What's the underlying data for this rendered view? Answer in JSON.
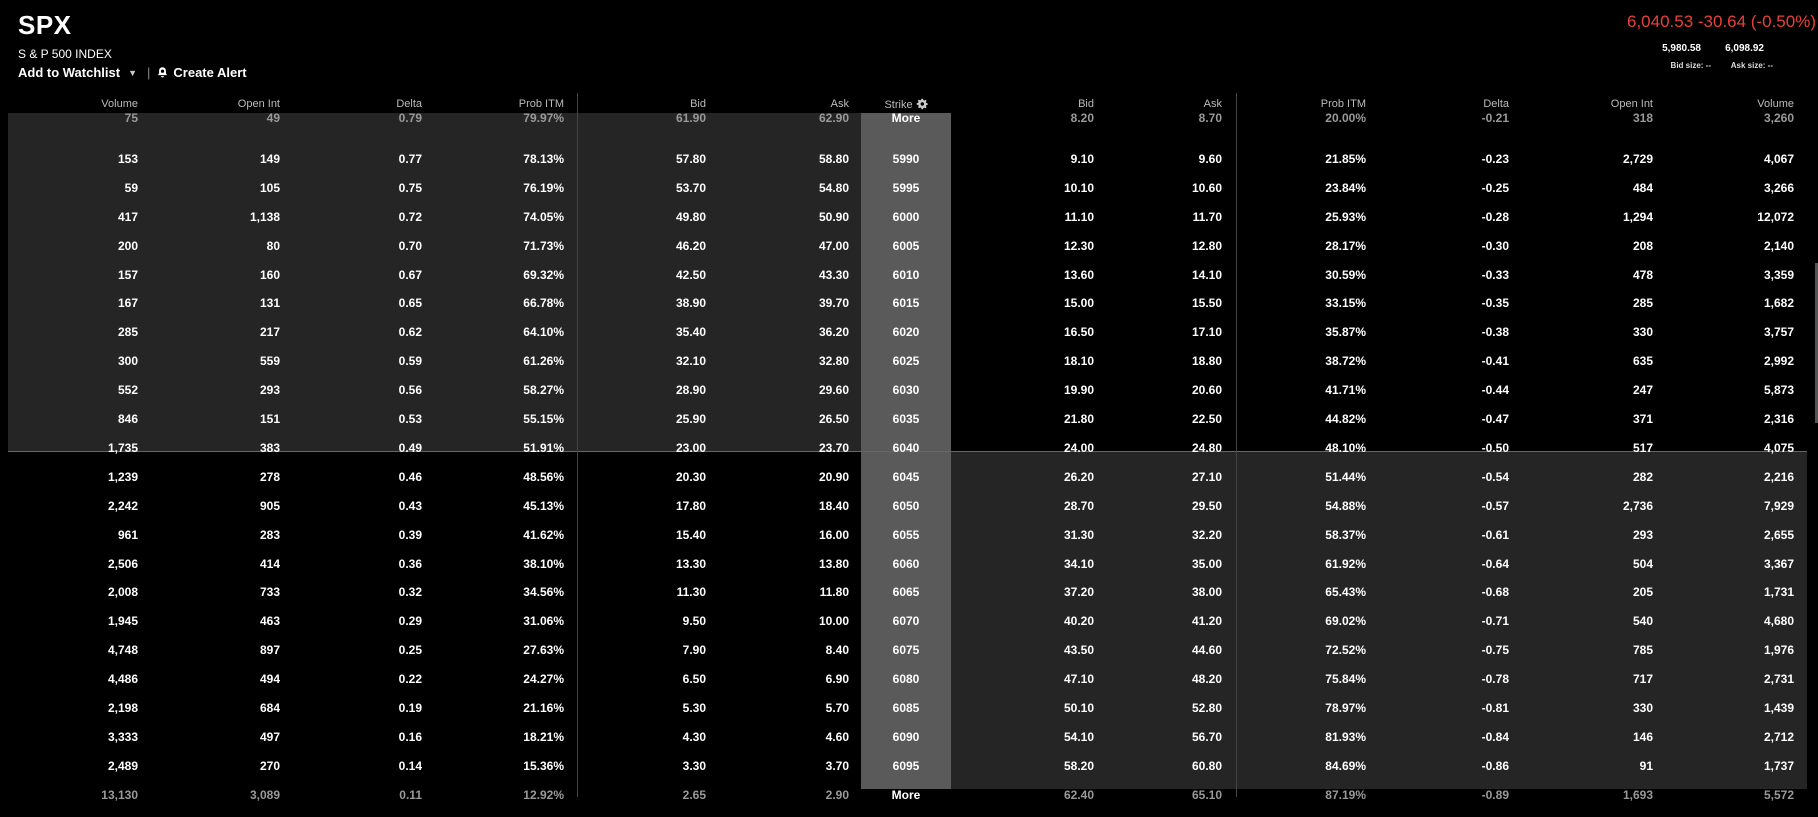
{
  "header": {
    "symbol": "SPX",
    "index_name": "S & P 500 INDEX",
    "add_watchlist": "Add to Watchlist",
    "separator": "|",
    "create_alert": "Create Alert",
    "price_change": "6,040.53 -30.64 (-0.50%)",
    "low": "5,980.58",
    "high": "6,098.92",
    "bid_size": "Bid size: --",
    "ask_size": "Ask size: --",
    "change_color": "#e8413a"
  },
  "columns": {
    "calls": [
      "Volume",
      "Open Int",
      "Delta",
      "Prob ITM",
      "Bid",
      "Ask"
    ],
    "strike": "Strike",
    "puts": [
      "Bid",
      "Ask",
      "Prob ITM",
      "Delta",
      "Open Int",
      "Volume"
    ]
  },
  "rows": [
    {
      "c": [
        "75",
        "49",
        "0.79",
        "79.97%",
        "61.90",
        "62.90"
      ],
      "s": "More",
      "p": [
        "8.20",
        "8.70",
        "20.00%",
        "-0.21",
        "318",
        "3,260"
      ]
    },
    {
      "c": [
        "153",
        "149",
        "0.77",
        "78.13%",
        "57.80",
        "58.80"
      ],
      "s": "5990",
      "p": [
        "9.10",
        "9.60",
        "21.85%",
        "-0.23",
        "2,729",
        "4,067"
      ]
    },
    {
      "c": [
        "59",
        "105",
        "0.75",
        "76.19%",
        "53.70",
        "54.80"
      ],
      "s": "5995",
      "p": [
        "10.10",
        "10.60",
        "23.84%",
        "-0.25",
        "484",
        "3,266"
      ]
    },
    {
      "c": [
        "417",
        "1,138",
        "0.72",
        "74.05%",
        "49.80",
        "50.90"
      ],
      "s": "6000",
      "p": [
        "11.10",
        "11.70",
        "25.93%",
        "-0.28",
        "1,294",
        "12,072"
      ]
    },
    {
      "c": [
        "200",
        "80",
        "0.70",
        "71.73%",
        "46.20",
        "47.00"
      ],
      "s": "6005",
      "p": [
        "12.30",
        "12.80",
        "28.17%",
        "-0.30",
        "208",
        "2,140"
      ]
    },
    {
      "c": [
        "157",
        "160",
        "0.67",
        "69.32%",
        "42.50",
        "43.30"
      ],
      "s": "6010",
      "p": [
        "13.60",
        "14.10",
        "30.59%",
        "-0.33",
        "478",
        "3,359"
      ]
    },
    {
      "c": [
        "167",
        "131",
        "0.65",
        "66.78%",
        "38.90",
        "39.70"
      ],
      "s": "6015",
      "p": [
        "15.00",
        "15.50",
        "33.15%",
        "-0.35",
        "285",
        "1,682"
      ]
    },
    {
      "c": [
        "285",
        "217",
        "0.62",
        "64.10%",
        "35.40",
        "36.20"
      ],
      "s": "6020",
      "p": [
        "16.50",
        "17.10",
        "35.87%",
        "-0.38",
        "330",
        "3,757"
      ]
    },
    {
      "c": [
        "300",
        "559",
        "0.59",
        "61.26%",
        "32.10",
        "32.80"
      ],
      "s": "6025",
      "p": [
        "18.10",
        "18.80",
        "38.72%",
        "-0.41",
        "635",
        "2,992"
      ]
    },
    {
      "c": [
        "552",
        "293",
        "0.56",
        "58.27%",
        "28.90",
        "29.60"
      ],
      "s": "6030",
      "p": [
        "19.90",
        "20.60",
        "41.71%",
        "-0.44",
        "247",
        "5,873"
      ]
    },
    {
      "c": [
        "846",
        "151",
        "0.53",
        "55.15%",
        "25.90",
        "26.50"
      ],
      "s": "6035",
      "p": [
        "21.80",
        "22.50",
        "44.82%",
        "-0.47",
        "371",
        "2,316"
      ]
    },
    {
      "c": [
        "1,735",
        "383",
        "0.49",
        "51.91%",
        "23.00",
        "23.70"
      ],
      "s": "6040",
      "p": [
        "24.00",
        "24.80",
        "48.10%",
        "-0.50",
        "517",
        "4,075"
      ]
    },
    {
      "c": [
        "1,239",
        "278",
        "0.46",
        "48.56%",
        "20.30",
        "20.90"
      ],
      "s": "6045",
      "p": [
        "26.20",
        "27.10",
        "51.44%",
        "-0.54",
        "282",
        "2,216"
      ]
    },
    {
      "c": [
        "2,242",
        "905",
        "0.43",
        "45.13%",
        "17.80",
        "18.40"
      ],
      "s": "6050",
      "p": [
        "28.70",
        "29.50",
        "54.88%",
        "-0.57",
        "2,736",
        "7,929"
      ]
    },
    {
      "c": [
        "961",
        "283",
        "0.39",
        "41.62%",
        "15.40",
        "16.00"
      ],
      "s": "6055",
      "p": [
        "31.30",
        "32.20",
        "58.37%",
        "-0.61",
        "293",
        "2,655"
      ]
    },
    {
      "c": [
        "2,506",
        "414",
        "0.36",
        "38.10%",
        "13.30",
        "13.80"
      ],
      "s": "6060",
      "p": [
        "34.10",
        "35.00",
        "61.92%",
        "-0.64",
        "504",
        "3,367"
      ]
    },
    {
      "c": [
        "2,008",
        "733",
        "0.32",
        "34.56%",
        "11.30",
        "11.80"
      ],
      "s": "6065",
      "p": [
        "37.20",
        "38.00",
        "65.43%",
        "-0.68",
        "205",
        "1,731"
      ]
    },
    {
      "c": [
        "1,945",
        "463",
        "0.29",
        "31.06%",
        "9.50",
        "10.00"
      ],
      "s": "6070",
      "p": [
        "40.20",
        "41.20",
        "69.02%",
        "-0.71",
        "540",
        "4,680"
      ]
    },
    {
      "c": [
        "4,748",
        "897",
        "0.25",
        "27.63%",
        "7.90",
        "8.40"
      ],
      "s": "6075",
      "p": [
        "43.50",
        "44.60",
        "72.52%",
        "-0.75",
        "785",
        "1,976"
      ]
    },
    {
      "c": [
        "4,486",
        "494",
        "0.22",
        "24.27%",
        "6.50",
        "6.90"
      ],
      "s": "6080",
      "p": [
        "47.10",
        "48.20",
        "75.84%",
        "-0.78",
        "717",
        "2,731"
      ]
    },
    {
      "c": [
        "2,198",
        "684",
        "0.19",
        "21.16%",
        "5.30",
        "5.70"
      ],
      "s": "6085",
      "p": [
        "50.10",
        "52.80",
        "78.97%",
        "-0.81",
        "330",
        "1,439"
      ]
    },
    {
      "c": [
        "3,333",
        "497",
        "0.16",
        "18.21%",
        "4.30",
        "4.60"
      ],
      "s": "6090",
      "p": [
        "54.10",
        "56.70",
        "81.93%",
        "-0.84",
        "146",
        "2,712"
      ]
    },
    {
      "c": [
        "2,489",
        "270",
        "0.14",
        "15.36%",
        "3.30",
        "3.70"
      ],
      "s": "6095",
      "p": [
        "58.20",
        "60.80",
        "84.69%",
        "-0.86",
        "91",
        "1,737"
      ]
    },
    {
      "c": [
        "13,130",
        "3,089",
        "0.11",
        "12.92%",
        "2.65",
        "2.90"
      ],
      "s": "More",
      "p": [
        "62.40",
        "65.10",
        "87.19%",
        "-0.89",
        "1,693",
        "5,572"
      ]
    }
  ]
}
